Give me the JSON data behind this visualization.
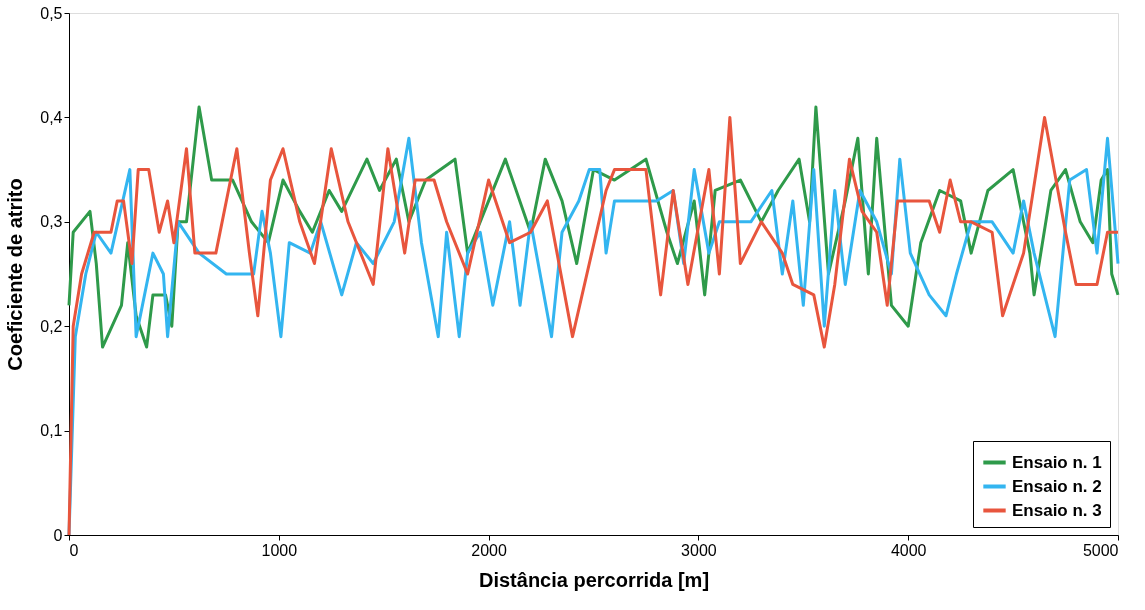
{
  "chart_data": {
    "type": "line",
    "xlabel": "Distância percorrida [m]",
    "ylabel": "Coeficiente de atrito",
    "xlim": [
      0,
      5000
    ],
    "xticks": [
      0,
      1000,
      2000,
      3000,
      4000,
      5000
    ],
    "ylim": [
      0,
      0.5
    ],
    "yticks": [
      0,
      {
        "value": 0.1,
        "label": "0,1"
      },
      {
        "value": 0.2,
        "label": "0,2"
      },
      {
        "value": 0.3,
        "label": "0,3"
      },
      {
        "value": 0.4,
        "label": "0,4"
      },
      {
        "value": 0.5,
        "label": "0,5"
      }
    ],
    "grid": false,
    "legend": "bottom right",
    "marker": "none",
    "line_style": "solid",
    "series": [
      {
        "name": "Ensaio n. 1",
        "color": "#2e9a4a",
        "x": [
          0,
          20,
          100,
          130,
          160,
          250,
          280,
          320,
          370,
          400,
          460,
          490,
          520,
          560,
          620,
          680,
          780,
          870,
          950,
          1020,
          1100,
          1160,
          1240,
          1300,
          1420,
          1480,
          1560,
          1620,
          1700,
          1840,
          1900,
          2080,
          2200,
          2270,
          2350,
          2420,
          2500,
          2600,
          2750,
          2850,
          2900,
          2980,
          3030,
          3080,
          3200,
          3300,
          3380,
          3480,
          3530,
          3560,
          3620,
          3700,
          3760,
          3810,
          3850,
          3920,
          4000,
          4060,
          4150,
          4250,
          4300,
          4380,
          4500,
          4580,
          4600,
          4680,
          4750,
          4820,
          4880,
          4920,
          4950,
          4970,
          5000
        ],
        "values": [
          0.22,
          0.29,
          0.31,
          0.26,
          0.18,
          0.22,
          0.28,
          0.21,
          0.18,
          0.23,
          0.23,
          0.2,
          0.3,
          0.3,
          0.41,
          0.34,
          0.34,
          0.3,
          0.28,
          0.34,
          0.31,
          0.29,
          0.33,
          0.31,
          0.36,
          0.33,
          0.36,
          0.3,
          0.34,
          0.36,
          0.27,
          0.36,
          0.29,
          0.36,
          0.32,
          0.26,
          0.35,
          0.34,
          0.36,
          0.29,
          0.26,
          0.32,
          0.23,
          0.33,
          0.34,
          0.3,
          0.33,
          0.36,
          0.3,
          0.41,
          0.25,
          0.32,
          0.38,
          0.25,
          0.38,
          0.22,
          0.2,
          0.28,
          0.33,
          0.32,
          0.27,
          0.33,
          0.35,
          0.27,
          0.23,
          0.33,
          0.35,
          0.3,
          0.28,
          0.34,
          0.35,
          0.25,
          0.23
        ]
      },
      {
        "name": "Ensaio n. 2",
        "color": "#33b5f0",
        "x": [
          0,
          30,
          80,
          130,
          200,
          290,
          320,
          400,
          450,
          470,
          520,
          620,
          750,
          880,
          920,
          960,
          1010,
          1050,
          1150,
          1200,
          1300,
          1370,
          1450,
          1550,
          1620,
          1680,
          1760,
          1800,
          1860,
          1900,
          1960,
          2020,
          2100,
          2150,
          2200,
          2300,
          2350,
          2430,
          2480,
          2530,
          2560,
          2600,
          2800,
          2880,
          2930,
          2980,
          3050,
          3100,
          3250,
          3350,
          3400,
          3450,
          3500,
          3550,
          3600,
          3650,
          3700,
          3770,
          3850,
          3920,
          3960,
          4010,
          4100,
          4180,
          4230,
          4300,
          4400,
          4500,
          4550,
          4600,
          4700,
          4770,
          4850,
          4900,
          4950,
          5000
        ],
        "values": [
          0,
          0.19,
          0.25,
          0.29,
          0.27,
          0.35,
          0.19,
          0.27,
          0.25,
          0.19,
          0.3,
          0.27,
          0.25,
          0.25,
          0.31,
          0.27,
          0.19,
          0.28,
          0.27,
          0.3,
          0.23,
          0.28,
          0.26,
          0.3,
          0.38,
          0.28,
          0.19,
          0.29,
          0.19,
          0.27,
          0.29,
          0.22,
          0.3,
          0.22,
          0.3,
          0.19,
          0.29,
          0.32,
          0.35,
          0.35,
          0.27,
          0.32,
          0.32,
          0.33,
          0.26,
          0.35,
          0.27,
          0.3,
          0.3,
          0.33,
          0.25,
          0.32,
          0.22,
          0.35,
          0.2,
          0.33,
          0.24,
          0.33,
          0.3,
          0.25,
          0.36,
          0.27,
          0.23,
          0.21,
          0.25,
          0.3,
          0.3,
          0.27,
          0.32,
          0.27,
          0.19,
          0.34,
          0.35,
          0.27,
          0.38,
          0.26
        ]
      },
      {
        "name": "Ensaio n. 3",
        "color": "#e8553d",
        "x": [
          0,
          20,
          60,
          120,
          200,
          230,
          260,
          300,
          330,
          380,
          430,
          470,
          500,
          560,
          600,
          700,
          800,
          860,
          900,
          960,
          1020,
          1100,
          1170,
          1250,
          1330,
          1450,
          1520,
          1600,
          1650,
          1740,
          1800,
          1900,
          2000,
          2100,
          2200,
          2280,
          2400,
          2560,
          2600,
          2750,
          2820,
          2880,
          2950,
          3050,
          3100,
          3150,
          3200,
          3300,
          3400,
          3450,
          3550,
          3600,
          3650,
          3720,
          3780,
          3850,
          3900,
          3950,
          4100,
          4150,
          4200,
          4250,
          4300,
          4400,
          4450,
          4550,
          4650,
          4750,
          4800,
          4900,
          4950,
          5000
        ],
        "values": [
          0,
          0.2,
          0.25,
          0.29,
          0.29,
          0.32,
          0.32,
          0.26,
          0.35,
          0.35,
          0.29,
          0.32,
          0.28,
          0.37,
          0.27,
          0.27,
          0.37,
          0.27,
          0.21,
          0.34,
          0.37,
          0.3,
          0.26,
          0.37,
          0.3,
          0.24,
          0.37,
          0.27,
          0.34,
          0.34,
          0.3,
          0.25,
          0.34,
          0.28,
          0.29,
          0.32,
          0.19,
          0.33,
          0.35,
          0.35,
          0.23,
          0.33,
          0.24,
          0.35,
          0.25,
          0.4,
          0.26,
          0.3,
          0.27,
          0.24,
          0.23,
          0.18,
          0.24,
          0.36,
          0.31,
          0.29,
          0.22,
          0.32,
          0.32,
          0.29,
          0.34,
          0.3,
          0.3,
          0.29,
          0.21,
          0.27,
          0.4,
          0.29,
          0.24,
          0.24,
          0.29,
          0.29
        ]
      }
    ]
  }
}
